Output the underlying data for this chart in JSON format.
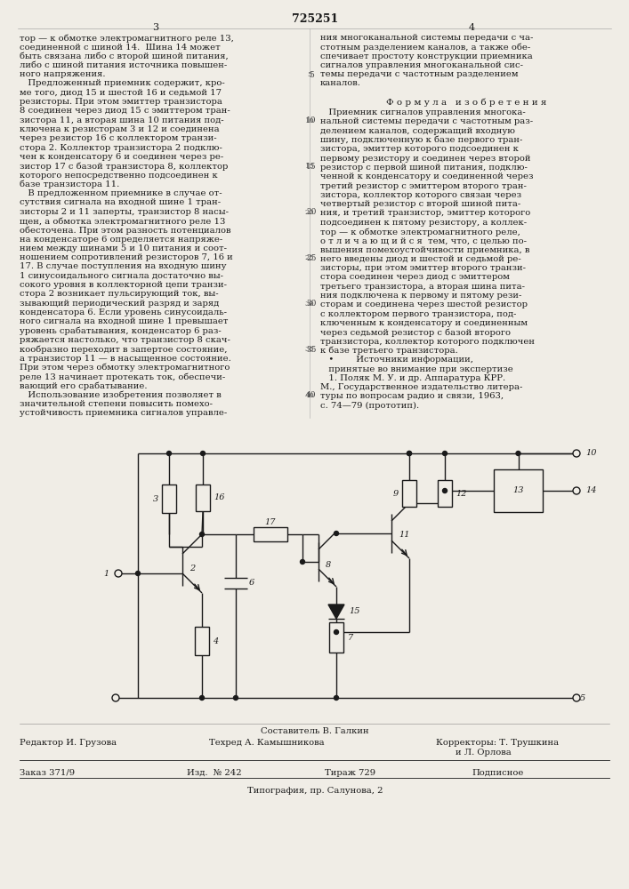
{
  "patent_number": "725251",
  "page_numbers": [
    "3",
    "4"
  ],
  "bg_color": "#f0ede6",
  "text_color": "#1a1a1a",
  "col1_text": [
    "тор — к обмотке электромагнитного реле 13,",
    "соединенной с шиной 14.  Шина 14 может",
    "быть связана либо с второй шиной питания,",
    "либо с шиной питания источника повышен-",
    "ного напряжения.",
    "   Предложенный приемник содержит, кро-",
    "ме того, диод 15 и шестой 16 и седьмой 17",
    "резисторы. При этом эмиттер транзистора",
    "8 соединен через диод 15 с эмиттером тран-",
    "зистора 11, а вторая шина 10 питания под-",
    "ключена к резисторам 3 и 12 и соединена",
    "через резистор 16 с коллектором транзи-",
    "стора 2. Коллектор транзистора 2 подклю-",
    "чен к конденсатору 6 и соединен через ре-",
    "зистор 17 с базой транзистора 8, коллектор",
    "которого непосредственно подсоединен к",
    "базе транзистора 11.",
    "   В предложенном приемнике в случае от-",
    "сутствия сигнала на входной шине 1 тран-",
    "зисторы 2 и 11 заперты, транзистор 8 насы-",
    "щен, а обмотка электромагнитного реле 13",
    "обесточена. При этом разность потенциалов",
    "на конденсаторе 6 определяется напряже-",
    "нием между шинами 5 и 10 питания и соот-",
    "ношением сопротивлений резисторов 7, 16 и",
    "17. В случае поступления на входную шину",
    "1 синусоидального сигнала достаточно вы-",
    "сокого уровня в коллекторной цепи транзи-",
    "стора 2 возникает пульсирующий ток, вы-",
    "зывающий периодический разряд и заряд",
    "конденсатора 6. Если уровень синусоидаль-",
    "ного сигнала на входной шине 1 превышает",
    "уровень срабатывания, конденсатор 6 раз-",
    "ряжается настолько, что транзистор 8 скач-",
    "кообразно переходит в запертое состояние,",
    "а транзистор 11 — в насыщенное состояние.",
    "При этом через обмотку электромагнитного",
    "реле 13 начинает протекать ток, обеспечи-",
    "вающий его срабатывание.",
    "   Использование изобретения позволяет в",
    "значительной степени повысить помехо-",
    "устойчивость приемника сигналов управле-"
  ],
  "col2_text_top": [
    "ния многоканальной системы передачи с ча-",
    "стотным разделением каналов, а также обе-",
    "спечивает простоту конструкции приемника",
    "сигналов управления многоканальной сис-",
    "темы передачи с частотным разделением",
    "каналов."
  ],
  "col2_formula_title": "Ф о р м у л а   и з о б р е т е н и я",
  "col2_text_body": [
    "   Приемник сигналов управления многока-",
    "нальной системы передачи с частотным раз-",
    "делением каналов, содержащий входную",
    "шину, подключенную к базе первого тран-",
    "зистора, эмиттер которого подсоединен к",
    "первому резистору и соединен через второй",
    "резистор с первой шиной питания, подклю-",
    "ченной к конденсатору и соединенной через",
    "третий резистор с эмиттером второго тран-",
    "зистора, коллектор которого связан через",
    "четвертый резистор с второй шиной пита-",
    "ния, и третий транзистор, эмиттер которого",
    "подсоединен к пятому резистору, а коллек-",
    "тор — к обмотке электромагнитного реле,",
    "о т л и ч а ю щ и й с я  тем, что, с целью по-",
    "вышения помехоустойчивости приемника, в",
    "него введены диод и шестой и седьмой ре-",
    "зисторы, при этом эмиттер второго транзи-",
    "стора соединен через диод с эмиттером",
    "третьего транзистора, а вторая шина пита-",
    "ния подключена к первому и пятому рези-",
    "сторам и соединена через шестой резистор",
    "с коллектором первого транзистора, под-",
    "ключенным к конденсатору и соединенным",
    "через седьмой резистор с базой второго",
    "транзистора, коллектор которого подключен",
    "к базе третьего транзистора.",
    "   •        Источники информации,",
    "   принятые во внимание при экспертизе",
    "   1. Поляк М. У. и др. Аппаратура КРР.",
    "М., Государственное издательство литера-",
    "туры по вопросам радио и связи, 1963,",
    "с. 74—79 (прототип)."
  ],
  "line_numbers_col1": [
    5,
    10,
    15,
    20,
    25,
    30,
    35,
    40
  ],
  "footer_composer": "Составитель В. Галкин",
  "footer_editor": "Редактор И. Грузова",
  "footer_techred": "Техред А. Камышникова",
  "footer_correctors": "Корректоры: Т. Трушкина",
  "footer_correctors2": "и Л. Орлова",
  "footer_order": "Заказ 371/9",
  "footer_izd": "Изд.  № 242",
  "footer_tirazh": "Тираж 729",
  "footer_podp": "Подписное",
  "footer_typography": "Типография, пр. Салунова, 2"
}
